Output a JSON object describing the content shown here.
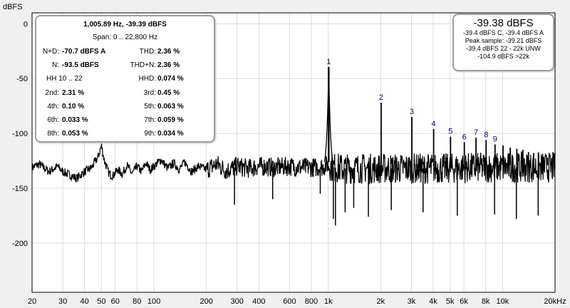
{
  "chart_data": {
    "type": "line",
    "title": "",
    "xlabel": "",
    "ylabel": "dBFS",
    "x_scale": "log",
    "xlim": [
      20,
      20000
    ],
    "ylim": [
      -245,
      10
    ],
    "grid": true,
    "x_ticks": [
      {
        "v": 20,
        "l": "20"
      },
      {
        "v": 30,
        "l": "30"
      },
      {
        "v": 40,
        "l": "40"
      },
      {
        "v": 50,
        "l": "50"
      },
      {
        "v": 60,
        "l": "60"
      },
      {
        "v": 80,
        "l": "80"
      },
      {
        "v": 100,
        "l": "100"
      },
      {
        "v": 200,
        "l": "200"
      },
      {
        "v": 300,
        "l": "300"
      },
      {
        "v": 400,
        "l": "400"
      },
      {
        "v": 600,
        "l": "600"
      },
      {
        "v": 800,
        "l": "800"
      },
      {
        "v": 1000,
        "l": "1k"
      },
      {
        "v": 2000,
        "l": "2k"
      },
      {
        "v": 3000,
        "l": "3k"
      },
      {
        "v": 4000,
        "l": "4k"
      },
      {
        "v": 5000,
        "l": "5k"
      },
      {
        "v": 6000,
        "l": "6k"
      },
      {
        "v": 8000,
        "l": "8k"
      },
      {
        "v": 10000,
        "l": "10k"
      },
      {
        "v": 20000,
        "l": "20kHz"
      }
    ],
    "y_ticks": [
      {
        "v": 0,
        "l": "0"
      },
      {
        "v": -50,
        "l": "-50"
      },
      {
        "v": -100,
        "l": "-100"
      },
      {
        "v": -150,
        "l": "-150"
      },
      {
        "v": -200,
        "l": "-200"
      }
    ],
    "series": [
      {
        "line_color": "#000000",
        "floor_points": [
          [
            20,
            -131
          ],
          [
            22,
            -128
          ],
          [
            25,
            -135
          ],
          [
            28,
            -130
          ],
          [
            30,
            -135
          ],
          [
            33,
            -138
          ],
          [
            36,
            -141
          ],
          [
            40,
            -135
          ],
          [
            44,
            -131
          ],
          [
            48,
            -121
          ],
          [
            50,
            -111
          ],
          [
            52,
            -125
          ],
          [
            55,
            -136
          ],
          [
            58,
            -139
          ],
          [
            62,
            -133
          ],
          [
            66,
            -137
          ],
          [
            70,
            -129
          ],
          [
            75,
            -137
          ],
          [
            80,
            -130
          ],
          [
            85,
            -135
          ],
          [
            90,
            -127
          ],
          [
            95,
            -133
          ],
          [
            100,
            -130
          ],
          [
            110,
            -124
          ],
          [
            120,
            -132
          ],
          [
            130,
            -127
          ],
          [
            140,
            -133
          ],
          [
            150,
            -126
          ],
          [
            165,
            -135
          ],
          [
            180,
            -130
          ],
          [
            200,
            -133
          ],
          [
            230,
            -128
          ],
          [
            260,
            -134
          ],
          [
            300,
            -130
          ],
          [
            350,
            -132
          ],
          [
            400,
            -130
          ],
          [
            500,
            -131
          ],
          [
            600,
            -130
          ],
          [
            700,
            -131
          ],
          [
            800,
            -131
          ],
          [
            900,
            -131
          ],
          [
            950,
            -130
          ],
          [
            1000,
            -128
          ],
          [
            1060,
            -131
          ],
          [
            1200,
            -132
          ],
          [
            1500,
            -132
          ],
          [
            2000,
            -132
          ],
          [
            3000,
            -132
          ],
          [
            5000,
            -132
          ],
          [
            8000,
            -131
          ],
          [
            12000,
            -131
          ],
          [
            20000,
            -131
          ]
        ],
        "peaks": [
          {
            "label": "1",
            "f": 1006,
            "db": -39.4
          },
          {
            "label": "2",
            "f": 2012,
            "db": -72
          },
          {
            "label": "3",
            "f": 3018,
            "db": -85
          },
          {
            "label": "4",
            "f": 4024,
            "db": -96
          },
          {
            "label": "5",
            "f": 5030,
            "db": -103
          },
          {
            "label": "6",
            "f": 6036,
            "db": -108
          },
          {
            "label": "7",
            "f": 7042,
            "db": -104
          },
          {
            "label": "8",
            "f": 8048,
            "db": -106
          },
          {
            "label": "9",
            "f": 9054,
            "db": -110
          },
          {
            "label": "",
            "f": 10060,
            "db": -111
          },
          {
            "label": "",
            "f": 11066,
            "db": -113
          },
          {
            "label": "",
            "f": 12072,
            "db": -114
          },
          {
            "label": "",
            "f": 13078,
            "db": -115
          },
          {
            "label": "",
            "f": 14084,
            "db": -117
          },
          {
            "label": "",
            "f": 15090,
            "db": -118
          },
          {
            "label": "",
            "f": 16096,
            "db": -119
          },
          {
            "label": "",
            "f": 17102,
            "db": -121
          },
          {
            "label": "",
            "f": 18108,
            "db": -122
          },
          {
            "label": "",
            "f": 19114,
            "db": -123
          }
        ],
        "dips": [
          [
            290,
            -165
          ],
          [
            480,
            -160
          ],
          [
            900,
            -155
          ],
          [
            1100,
            -184
          ],
          [
            1070,
            -178
          ],
          [
            1250,
            -172
          ],
          [
            1400,
            -168
          ],
          [
            1700,
            -176
          ],
          [
            2300,
            -170
          ],
          [
            3500,
            -172
          ],
          [
            5500,
            -175
          ],
          [
            9000,
            -174
          ],
          [
            12000,
            -178
          ],
          [
            16000,
            -175
          ]
        ]
      }
    ],
    "annotations_color": "#00008b"
  },
  "stats_panel": {
    "cursor": "1,005.89 Hz, -39.39 dBFS",
    "span": "Span: 0 .. 22,800 Hz",
    "nd_label": "N+D:",
    "nd_value": "-70.7 dBFS A",
    "thd_label": "THD:",
    "thd_value": "2.36 %",
    "n_label": "N:",
    "n_value": "-93.5 dBFS",
    "thdn_label": "THD+N:",
    "thdn_value": "2.36 %",
    "hh_label": "HH 10 .. 22",
    "hhd_label": "HHD:",
    "hhd_value": "0.074 %",
    "h2_label": "2nd:",
    "h2_value": "2.31 %",
    "h3_label": "3rd:",
    "h3_value": "0.45 %",
    "h4_label": "4th:",
    "h4_value": "0.10 %",
    "h5_label": "5th:",
    "h5_value": "0.063 %",
    "h6_label": "6th:",
    "h6_value": "0.033 %",
    "h7_label": "7th:",
    "h7_value": "0.059 %",
    "h8_label": "8th:",
    "h8_value": "0.053 %",
    "h9_label": "9th:",
    "h9_value": "0.034 %"
  },
  "level_panel": {
    "level": "-39.38 dBFS",
    "line1": "-39.4 dBFS C, -39.4 dBFS A",
    "line2": "Peak sample: -39.21 dBFS",
    "line3": "-39.4 dBFS 22 - 22k UNW",
    "line4": "-104.9 dBFS >22k"
  }
}
